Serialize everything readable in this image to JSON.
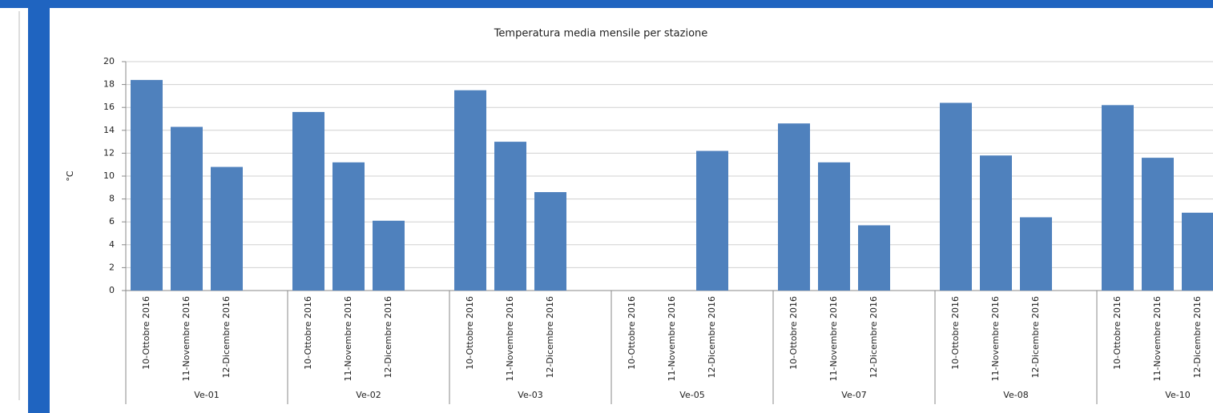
{
  "chart_data": {
    "type": "bar",
    "title": "Temperatura media mensile per stazione",
    "y_label": "°C",
    "groups": [
      "Ve-01",
      "Ve-02",
      "Ve-03",
      "Ve-05",
      "Ve-07",
      "Ve-08",
      "Ve-10"
    ],
    "categories": [
      "10-Ottobre 2016",
      "11-Novembre 2016",
      "12-Dicembre 2016",
      "10-Ottobre 2016",
      "11-Novembre 2016",
      "12-Dicembre 2016",
      "10-Ottobre 2016",
      "11-Novembre 2016",
      "12-Dicembre 2016",
      "10-Ottobre 2016",
      "11-Novembre 2016",
      "12-Dicembre 2016",
      "10-Ottobre 2016",
      "11-Novembre 2016",
      "12-Dicembre 2016",
      "10-Ottobre 2016",
      "11-Novembre 2016",
      "12-Dicembre 2016",
      "10-Ottobre 2016",
      "11-Novembre 2016",
      "12-Dicembre 2016"
    ],
    "values": [
      18.4,
      14.3,
      10.8,
      15.6,
      11.2,
      6.1,
      17.5,
      13.0,
      8.6,
      null,
      null,
      12.2,
      14.6,
      11.2,
      5.7,
      16.4,
      11.8,
      6.4,
      16.2,
      11.6,
      6.8
    ],
    "color": "#4f81bd",
    "ylim": [
      0,
      20
    ],
    "yticks": [
      0,
      2,
      4,
      6,
      8,
      10,
      12,
      14,
      16,
      18,
      20
    ],
    "grid": true
  }
}
